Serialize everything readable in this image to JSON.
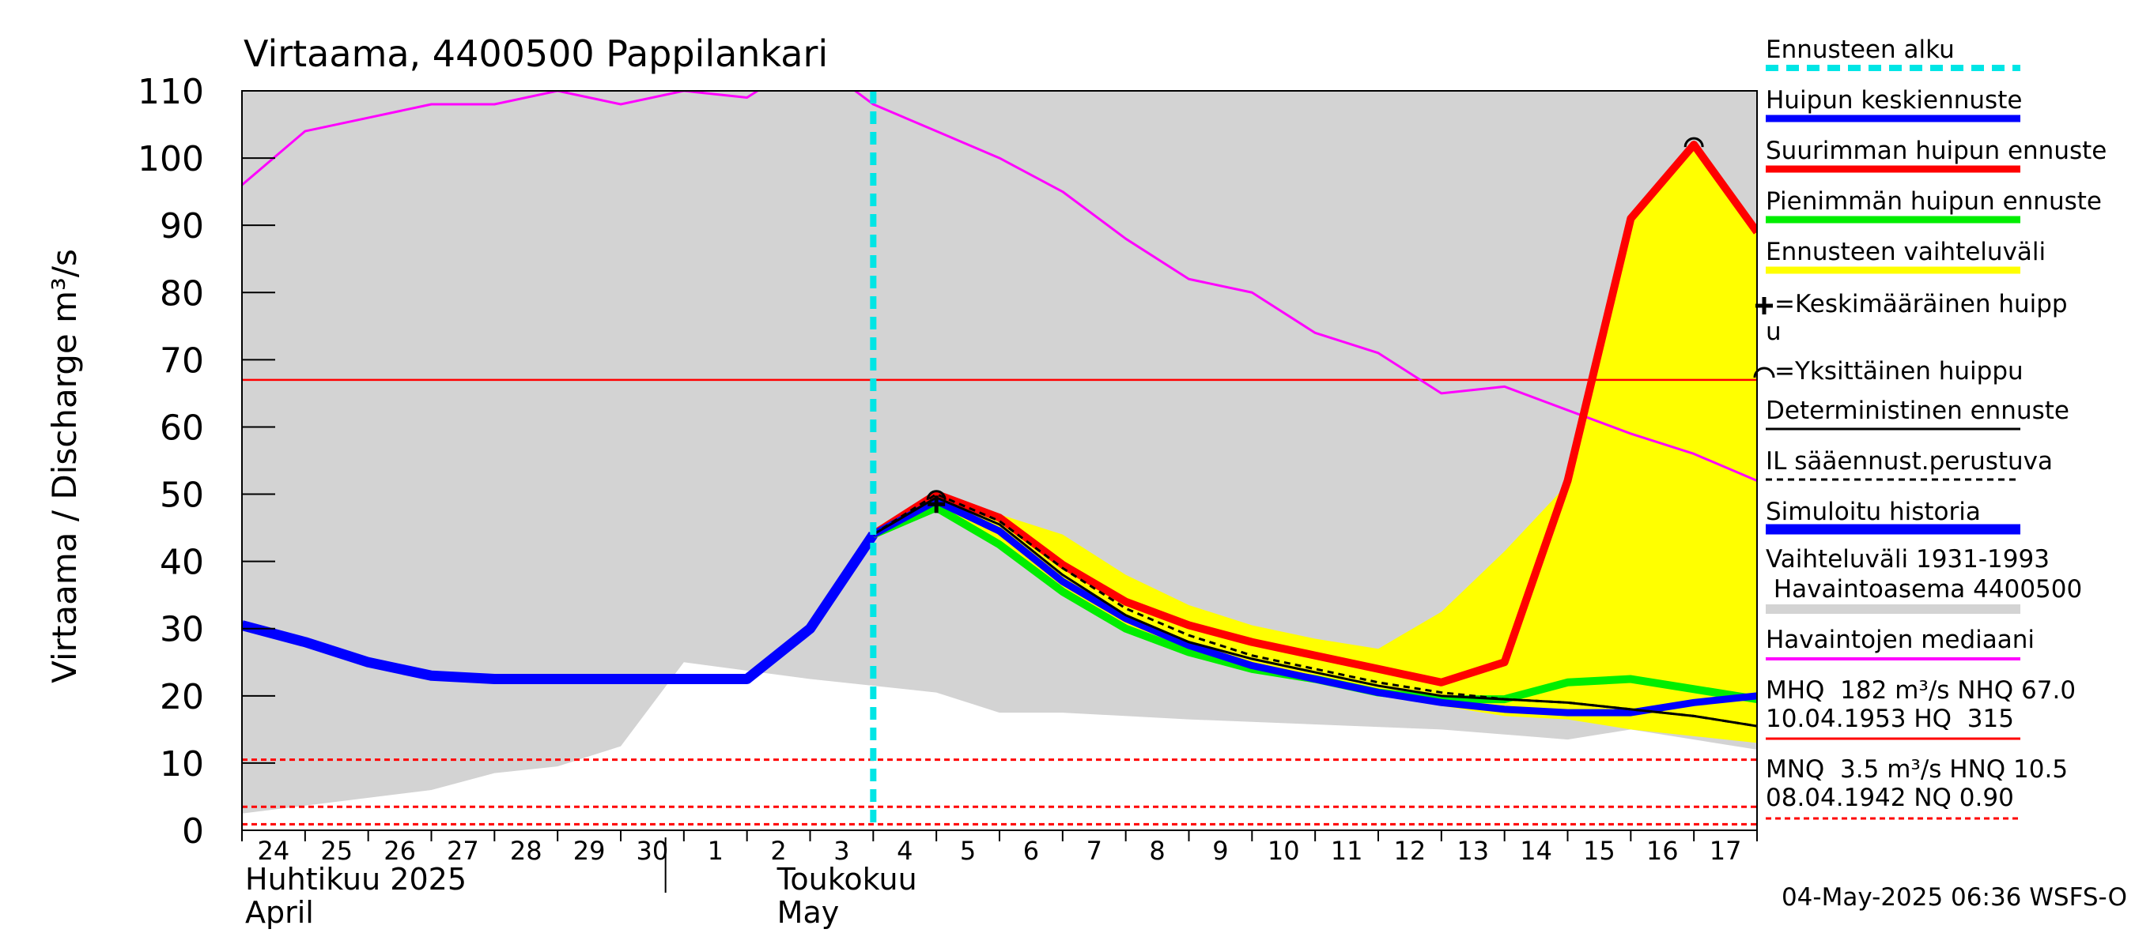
{
  "chart_data": {
    "type": "line",
    "title": "Virtaama, 4400500 Pappilankari",
    "ylabel": "Virtaama / Discharge    m³/s",
    "ylim": [
      0,
      110
    ],
    "yticks": [
      0,
      10,
      20,
      30,
      40,
      50,
      60,
      70,
      80,
      90,
      100,
      110
    ],
    "x_start": "2025-04-24",
    "x_end": "2025-05-18",
    "day_labels": [
      "24",
      "25",
      "26",
      "27",
      "28",
      "29",
      "30",
      "1",
      "2",
      "3",
      "4",
      "5",
      "6",
      "7",
      "8",
      "9",
      "10",
      "11",
      "12",
      "13",
      "14",
      "15",
      "16",
      "17"
    ],
    "month_labels": [
      {
        "fi": "Huhtikuu  2025",
        "en": "April",
        "date": "2025-04-24"
      },
      {
        "fi": "Toukokuu",
        "en": "May",
        "date": "2025-05-02"
      }
    ],
    "forecast_start": "2025-05-04",
    "series": [
      {
        "name": "Vaihteluväli 1931-1993 Havaintoasema 4400500",
        "kind": "band",
        "color": "#d3d3d3",
        "x": [
          "2025-04-24",
          "2025-04-27",
          "2025-04-28",
          "2025-04-29",
          "2025-04-30",
          "2025-05-01",
          "2025-05-03",
          "2025-05-05",
          "2025-05-06",
          "2025-05-07",
          "2025-05-09",
          "2025-05-13",
          "2025-05-15",
          "2025-05-16",
          "2025-05-18"
        ],
        "lower": [
          2.5,
          6,
          8.5,
          9.5,
          12.5,
          25,
          22.5,
          20.5,
          17.5,
          17.5,
          16.5,
          15,
          13.5,
          15,
          12
        ],
        "upper": [
          110,
          110,
          110,
          110,
          110,
          110,
          110,
          110,
          110,
          110,
          110,
          110,
          110,
          110,
          110
        ]
      },
      {
        "name": "Ennusteen vaihteluväli",
        "kind": "band",
        "color": "#ffff00",
        "x": [
          "2025-05-04",
          "2025-05-05",
          "2025-05-06",
          "2025-05-07",
          "2025-05-08",
          "2025-05-09",
          "2025-05-10",
          "2025-05-11",
          "2025-05-12",
          "2025-05-13",
          "2025-05-14",
          "2025-05-15",
          "2025-05-16",
          "2025-05-17",
          "2025-05-18"
        ],
        "lower": [
          44,
          48,
          43,
          36,
          30.5,
          26.5,
          24,
          22,
          20.5,
          18.5,
          17,
          16.5,
          15,
          14,
          13
        ],
        "upper": [
          44,
          50.5,
          47,
          44,
          38,
          33.5,
          30.5,
          28.5,
          27,
          32.5,
          41.5,
          51.5,
          91,
          102,
          89
        ]
      },
      {
        "name": "Havaintojen mediaani",
        "color": "#ff00ff",
        "x": [
          "2025-04-24",
          "2025-04-25",
          "2025-04-26",
          "2025-04-27",
          "2025-04-28",
          "2025-04-29",
          "2025-04-30",
          "2025-05-01",
          "2025-05-02",
          "2025-05-03",
          "2025-05-04",
          "2025-05-05",
          "2025-05-06",
          "2025-05-07",
          "2025-05-08",
          "2025-05-09",
          "2025-05-10",
          "2025-05-11",
          "2025-05-12",
          "2025-05-13",
          "2025-05-14",
          "2025-05-15",
          "2025-05-16",
          "2025-05-17",
          "2025-05-18"
        ],
        "values": [
          96,
          104,
          106,
          108,
          108,
          110,
          108,
          110,
          109,
          115,
          108,
          104,
          100,
          95,
          88,
          82,
          80,
          74,
          71,
          65,
          66,
          62.5,
          59,
          56,
          52
        ]
      },
      {
        "name": "MHQ",
        "kind": "hline",
        "color": "#ff0000",
        "style": "solid",
        "values": [
          67
        ]
      },
      {
        "name": "MNQ",
        "kind": "hline",
        "color": "#ff0000",
        "style": "dashed",
        "values": [
          10.5,
          3.5,
          0.9
        ]
      },
      {
        "name": "Simuloitu historia",
        "color": "#0000ff",
        "x": [
          "2025-04-24",
          "2025-04-25",
          "2025-04-26",
          "2025-04-27",
          "2025-04-28",
          "2025-04-29",
          "2025-04-30",
          "2025-05-01",
          "2025-05-02",
          "2025-05-03",
          "2025-05-04"
        ],
        "values": [
          30.5,
          28,
          25,
          23,
          22.5,
          22.5,
          22.5,
          22.5,
          22.5,
          30,
          44
        ]
      },
      {
        "name": "Pienimmän huipun ennuste",
        "color": "#00ee00",
        "x": [
          "2025-05-04",
          "2025-05-05",
          "2025-05-06",
          "2025-05-07",
          "2025-05-08",
          "2025-05-09",
          "2025-05-10",
          "2025-05-11",
          "2025-05-12",
          "2025-05-13",
          "2025-05-14",
          "2025-05-15",
          "2025-05-16",
          "2025-05-17",
          "2025-05-18"
        ],
        "values": [
          44,
          48,
          42.5,
          35.5,
          30,
          26.5,
          24,
          22.5,
          20.5,
          19.5,
          19.5,
          22,
          22.5,
          21,
          19.5
        ]
      },
      {
        "name": "Suurimman huipun ennuste",
        "color": "#ff0000",
        "x": [
          "2025-05-04",
          "2025-05-05",
          "2025-05-06",
          "2025-05-07",
          "2025-05-08",
          "2025-05-09",
          "2025-05-10",
          "2025-05-11",
          "2025-05-12",
          "2025-05-13",
          "2025-05-14",
          "2025-05-15",
          "2025-05-16",
          "2025-05-17",
          "2025-05-18"
        ],
        "values": [
          44,
          50,
          46.5,
          39.5,
          34,
          30.5,
          28,
          26,
          24,
          22,
          25,
          52,
          91,
          102,
          89
        ]
      },
      {
        "name": "Huipun keskiennuste",
        "color": "#0000ff",
        "x": [
          "2025-05-04",
          "2025-05-05",
          "2025-05-06",
          "2025-05-07",
          "2025-05-08",
          "2025-05-09",
          "2025-05-10",
          "2025-05-11",
          "2025-05-12",
          "2025-05-13",
          "2025-05-14",
          "2025-05-15",
          "2025-05-16",
          "2025-05-17",
          "2025-05-18"
        ],
        "values": [
          44,
          49,
          44.5,
          37,
          31.5,
          27.5,
          24.5,
          22.5,
          20.5,
          19,
          18,
          17.5,
          17.5,
          19,
          20
        ]
      },
      {
        "name": "Deterministinen ennuste",
        "color": "#000000",
        "x": [
          "2025-05-04",
          "2025-05-05",
          "2025-05-06",
          "2025-05-07",
          "2025-05-08",
          "2025-05-09",
          "2025-05-10",
          "2025-05-11",
          "2025-05-12",
          "2025-05-13",
          "2025-05-14",
          "2025-05-15",
          "2025-05-16",
          "2025-05-17",
          "2025-05-18"
        ],
        "values": [
          44,
          49.5,
          45.5,
          38,
          32,
          28,
          25.5,
          23.5,
          21.5,
          20,
          19.5,
          19,
          18,
          17,
          15.5
        ]
      },
      {
        "name": "IL sääennust.perustuva",
        "color": "#000000",
        "style": "dashed",
        "x": [
          "2025-05-04",
          "2025-05-05",
          "2025-05-06",
          "2025-05-07",
          "2025-05-08",
          "2025-05-09",
          "2025-05-10",
          "2025-05-11",
          "2025-05-12",
          "2025-05-13",
          "2025-05-14",
          "2025-05-15",
          "2025-05-16",
          "2025-05-17",
          "2025-05-18"
        ],
        "values": [
          44,
          50,
          46,
          39,
          33,
          29,
          26,
          24,
          22,
          20.5,
          19.5,
          19,
          18,
          17,
          15.5
        ]
      }
    ],
    "peaks": [
      {
        "x": "2025-05-05",
        "y": 49.5,
        "marker": "single"
      },
      {
        "x": "2025-05-05",
        "y": 48.5,
        "marker": "mean"
      },
      {
        "x": "2025-05-17",
        "y": 102,
        "marker": "single"
      }
    ]
  },
  "legend": {
    "forecast_start": "Ennusteen alku",
    "mean_peak": "Huipun keskiennuste",
    "max_peak": "Suurimman huipun ennuste",
    "min_peak": "Pienimmän huipun ennuste",
    "range": "Ennusteen vaihteluväli",
    "avg_peak_marker_1": "=Keskimääräinen huipp",
    "avg_peak_marker_2": "u",
    "single_peak_marker": "=Yksittäinen huippu",
    "deterministic": "Deterministinen ennuste",
    "il_forecast": "IL sääennust.perustuva",
    "simulated": "Simuloitu historia",
    "hist_range_1": "Vaihteluväli 1931-1993",
    "hist_range_2": " Havaintoasema 4400500",
    "median": "Havaintojen mediaani",
    "mhq_1": "MHQ  182 m³/s NHQ 67.0",
    "mhq_2": "10.04.1953 HQ  315",
    "mnq_1": "MNQ  3.5 m³/s HNQ 10.5",
    "mnq_2": "08.04.1942 NQ 0.90"
  },
  "footer": "04-May-2025 06:36 WSFS-O",
  "colors": {
    "cyan": "#00e5e5",
    "blue": "#0000ff",
    "red": "#ff0000",
    "green": "#00ee00",
    "yellow": "#ffff00",
    "magenta": "#ff00ff",
    "gray": "#d3d3d3",
    "black": "#000000"
  }
}
